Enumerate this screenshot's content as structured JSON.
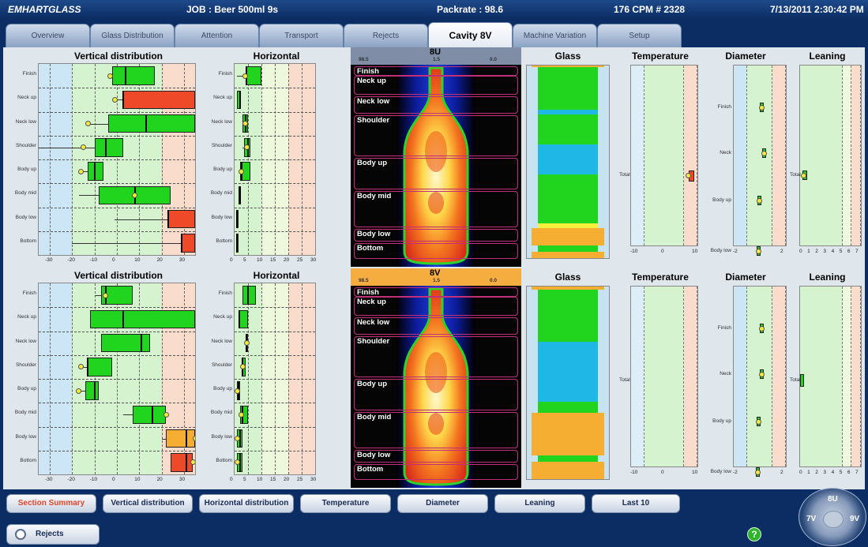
{
  "header": {
    "brand": "EMHARTGLASS",
    "job": "JOB : Beer 500ml 9s",
    "packrate": "Packrate : 98.6",
    "cpm": "176 CPM  # 2328",
    "datetime": "7/13/2011 2:30:42 PM"
  },
  "tabs": [
    "Overview",
    "Glass Distribution",
    "Attention",
    "Transport",
    "Rejects",
    "Cavity 8V",
    "Machine Variation",
    "Setup"
  ],
  "active_tab": "Cavity 8V",
  "upper": {
    "vertical": {
      "title": "Vertical distribution",
      "rows": [
        "Finish",
        "Neck up",
        "Neck low",
        "Shoulder",
        "Body up",
        "Body mid",
        "Body low",
        "Bottom"
      ],
      "ticks": [
        "-30",
        "-20",
        "-10",
        "0",
        "10",
        "20",
        "30"
      ]
    },
    "horizontal": {
      "title": "Horizontal distribution",
      "rows": [
        "Finish",
        "Neck up",
        "Neck low",
        "Shoulder",
        "Body up",
        "Body mid",
        "Body low",
        "Bottom"
      ],
      "ticks": [
        "0",
        "5",
        "10",
        "15",
        "20",
        "25",
        "30"
      ]
    },
    "image": {
      "cavity": "8U",
      "scale": [
        "98.5",
        "1.5",
        "0.0"
      ],
      "zones": [
        "Finish",
        "Neck up",
        "Neck low",
        "Shoulder",
        "Body up",
        "Body mid",
        "Body low",
        "Bottom"
      ]
    },
    "glass_title": "Glass",
    "temperature": {
      "title": "Temperature",
      "row": "Total",
      "ticks": [
        "-10",
        "0",
        "10"
      ]
    },
    "diameter": {
      "title": "Diameter",
      "rows": [
        "Finish",
        "Neck",
        "Body up",
        "Body low"
      ],
      "ticks": [
        "-2",
        "0",
        "2"
      ]
    },
    "leaning": {
      "title": "Leaning",
      "row": "Total",
      "ticks": [
        "0",
        "1",
        "2",
        "3",
        "4",
        "5",
        "6",
        "7"
      ]
    }
  },
  "lower": {
    "vertical": {
      "title": "Vertical distribution",
      "rows": [
        "Finish",
        "Neck up",
        "Neck low",
        "Shoulder",
        "Body up",
        "Body mid",
        "Body low",
        "Bottom"
      ],
      "ticks": [
        "-30",
        "-20",
        "-10",
        "0",
        "10",
        "20",
        "30"
      ]
    },
    "horizontal": {
      "title": "Horizontal distribution",
      "rows": [
        "Finish",
        "Neck up",
        "Neck low",
        "Shoulder",
        "Body up",
        "Body mid",
        "Body low",
        "Bottom"
      ],
      "ticks": [
        "0",
        "5",
        "10",
        "15",
        "20",
        "25",
        "30"
      ]
    },
    "image": {
      "cavity": "8V",
      "scale": [
        "98.5",
        "1.5",
        "0.0"
      ],
      "zones": [
        "Finish",
        "Neck up",
        "Neck low",
        "Shoulder",
        "Body up",
        "Body mid",
        "Body low",
        "Bottom"
      ]
    },
    "glass_title": "Glass",
    "temperature": {
      "title": "Temperature",
      "row": "Total",
      "ticks": [
        "-10",
        "0",
        "10"
      ]
    },
    "diameter": {
      "title": "Diameter",
      "rows": [
        "Finish",
        "Neck",
        "Body up",
        "Body low"
      ],
      "ticks": [
        "-2",
        "0",
        "2"
      ]
    },
    "leaning": {
      "title": "Leaning",
      "row": "Total",
      "ticks": [
        "0",
        "1",
        "2",
        "3",
        "4",
        "5",
        "6",
        "7"
      ]
    }
  },
  "chart_data": [
    {
      "type": "box",
      "name": "upper-vertical",
      "xlim": [
        -35,
        35
      ],
      "rows": [
        {
          "label": "Finish",
          "box": [
            -2,
            17
          ],
          "median": 4,
          "whisker": [
            -4,
            17
          ],
          "mean": -3,
          "color": "#21d51e"
        },
        {
          "label": "Neck up",
          "box": [
            3,
            35
          ],
          "median": 3,
          "whisker": [
            -1,
            35
          ],
          "mean": -1,
          "color": "#ee4a2a"
        },
        {
          "label": "Neck low",
          "box": [
            -4,
            35
          ],
          "median": 13,
          "whisker": [
            -13,
            35
          ],
          "mean": -13,
          "color": "#21d51e"
        },
        {
          "label": "Shoulder",
          "box": [
            -10,
            3
          ],
          "median": -5,
          "whisker": [
            -35,
            3
          ],
          "mean": -15,
          "color": "#21d51e"
        },
        {
          "label": "Body up",
          "box": [
            -13,
            -6
          ],
          "median": -10,
          "whisker": [
            -16,
            -6
          ],
          "mean": -16,
          "color": "#21d51e"
        },
        {
          "label": "Body mid",
          "box": [
            -8,
            24
          ],
          "median": 8,
          "whisker": [
            -17,
            24
          ],
          "mean": 8,
          "color": "#21d51e"
        },
        {
          "label": "Body low",
          "box": [
            23,
            35
          ],
          "median": 23,
          "whisker": [
            -1,
            35
          ],
          "mean": null,
          "color": "#ee4a2a"
        },
        {
          "label": "Bottom",
          "box": [
            29,
            35
          ],
          "median": 29,
          "whisker": [
            -20,
            35
          ],
          "mean": null,
          "color": "#ee4a2a"
        }
      ]
    },
    {
      "type": "box",
      "name": "upper-horizontal",
      "xlim": [
        0,
        30
      ],
      "rows": [
        {
          "label": "Finish",
          "box": [
            4,
            10
          ],
          "median": 4.5,
          "whisker": [
            1,
            10
          ],
          "mean": 4,
          "color": "#21d51e"
        },
        {
          "label": "Neck up",
          "box": [
            1,
            2.5
          ],
          "median": 2,
          "whisker": [
            1,
            2.5
          ],
          "mean": null,
          "color": "#21d51e"
        },
        {
          "label": "Neck low",
          "box": [
            3,
            5
          ],
          "median": 4,
          "whisker": [
            3,
            5
          ],
          "mean": 4,
          "color": "#21d51e"
        },
        {
          "label": "Shoulder",
          "box": [
            3.5,
            6
          ],
          "median": 5,
          "whisker": [
            3,
            6
          ],
          "mean": 4.5,
          "color": "#21d51e"
        },
        {
          "label": "Body up",
          "box": [
            2,
            6
          ],
          "median": 2.5,
          "whisker": [
            2,
            6
          ],
          "mean": 2.5,
          "color": "#21d51e"
        },
        {
          "label": "Body mid",
          "box": [
            1.5,
            2.5
          ],
          "median": 2,
          "whisker": [
            1.5,
            2.5
          ],
          "mean": null,
          "color": "#21d51e"
        },
        {
          "label": "Body low",
          "box": [
            0.5,
            1.2
          ],
          "median": 1,
          "whisker": [
            0.5,
            1.2
          ],
          "mean": null,
          "color": "#21d51e"
        },
        {
          "label": "Bottom",
          "box": [
            0.5,
            1.3
          ],
          "median": 1,
          "whisker": [
            0.5,
            1.3
          ],
          "mean": null,
          "color": "#21d51e"
        }
      ]
    },
    {
      "type": "box",
      "name": "lower-vertical",
      "xlim": [
        -35,
        35
      ],
      "rows": [
        {
          "label": "Finish",
          "box": [
            -7,
            7
          ],
          "median": -5,
          "whisker": [
            -10,
            7
          ],
          "mean": -5,
          "color": "#21d51e"
        },
        {
          "label": "Neck up",
          "box": [
            -12,
            35
          ],
          "median": 3,
          "whisker": [
            -12,
            35
          ],
          "mean": null,
          "color": "#21d51e"
        },
        {
          "label": "Neck low",
          "box": [
            -7,
            15
          ],
          "median": 11,
          "whisker": [
            -7,
            15
          ],
          "mean": null,
          "color": "#21d51e"
        },
        {
          "label": "Shoulder",
          "box": [
            -13,
            -2
          ],
          "median": -13,
          "whisker": [
            -16,
            -2
          ],
          "mean": -16,
          "color": "#21d51e"
        },
        {
          "label": "Body up",
          "box": [
            -14,
            -8
          ],
          "median": -10,
          "whisker": [
            -17,
            -8
          ],
          "mean": -17,
          "color": "#21d51e"
        },
        {
          "label": "Body mid",
          "box": [
            7,
            22
          ],
          "median": 16,
          "whisker": [
            3,
            22
          ],
          "mean": 22,
          "color": "#21d51e"
        },
        {
          "label": "Body low",
          "box": [
            22,
            35
          ],
          "median": 31,
          "whisker": [
            20,
            35
          ],
          "mean": 35,
          "color": "#f6ae32"
        },
        {
          "label": "Bottom",
          "box": [
            24,
            34
          ],
          "median": 31,
          "whisker": [
            24,
            34
          ],
          "mean": 34,
          "color": "#ee4a2a"
        }
      ]
    },
    {
      "type": "box",
      "name": "lower-horizontal",
      "xlim": [
        0,
        30
      ],
      "rows": [
        {
          "label": "Finish",
          "box": [
            3,
            8
          ],
          "median": 5,
          "whisker": [
            3,
            8
          ],
          "mean": null,
          "color": "#21d51e"
        },
        {
          "label": "Neck up",
          "box": [
            1.5,
            5
          ],
          "median": 1.7,
          "whisker": [
            1.5,
            5
          ],
          "mean": null,
          "color": "#21d51e"
        },
        {
          "label": "Neck low",
          "box": [
            4,
            5
          ],
          "median": 4.5,
          "whisker": [
            4,
            5
          ],
          "mean": 4.5,
          "color": "#21d51e"
        },
        {
          "label": "Shoulder",
          "box": [
            2.5,
            4
          ],
          "median": 3,
          "whisker": [
            2.5,
            4
          ],
          "mean": 3,
          "color": "#21d51e"
        },
        {
          "label": "Body up",
          "box": [
            1,
            2
          ],
          "median": 1.5,
          "whisker": [
            1,
            2
          ],
          "mean": 1,
          "color": "#21d51e"
        },
        {
          "label": "Body mid",
          "box": [
            2,
            5
          ],
          "median": 3,
          "whisker": [
            2,
            5
          ],
          "mean": 2.5,
          "color": "#21d51e"
        },
        {
          "label": "Body low",
          "box": [
            1,
            3
          ],
          "median": 2,
          "whisker": [
            1,
            3
          ],
          "mean": 1,
          "color": "#21d51e"
        },
        {
          "label": "Bottom",
          "box": [
            1,
            3
          ],
          "median": 2,
          "whisker": [
            1,
            3
          ],
          "mean": 1,
          "color": "#21d51e"
        }
      ]
    }
  ],
  "bottom_buttons": [
    "Section Summary",
    "Vertical distribution",
    "Horizontal distribution",
    "Temperature",
    "Diameter",
    "Leaning",
    "Last 10"
  ],
  "rejects_label": "Rejects",
  "selector": {
    "top": "8U",
    "left": "7V",
    "right": "9V"
  }
}
